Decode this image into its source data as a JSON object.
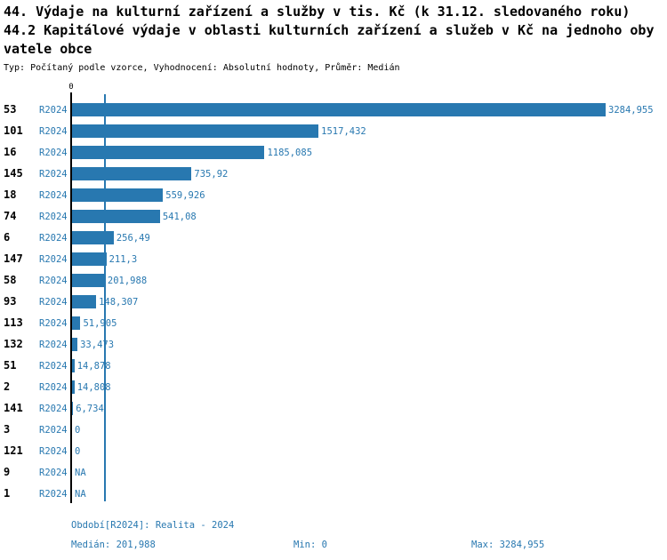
{
  "title": {
    "line1": "44. Výdaje na kulturní zařízení a služby v tis. Kč (k 31.12. sledovaného roku)",
    "line2": "44.2 Kapitálové výdaje v oblasti kulturních zařízení a služeb v Kč na jednoho oby",
    "line3": "vatele obce",
    "subtitle": "Typ: Počítaný podle vzorce, Vyhodnocení: Absolutní hodnoty, Průměr: Medián"
  },
  "axis": {
    "zero_label": "0"
  },
  "colors": {
    "bar": "#2878b0",
    "axis": "#000000",
    "median_line": "#2878b0",
    "text": "#000000",
    "accent_text": "#2878b0"
  },
  "chart_data": {
    "type": "bar",
    "orientation": "horizontal",
    "title": "44. Výdaje na kulturní zařízení a služby v tis. Kč (k 31.12. sledovaného roku) — 44.2 Kapitálové výdaje v oblasti kulturních zařízení a služeb v Kč na jednoho obyvatele obce",
    "period_label": "R2024",
    "categories": [
      "53",
      "101",
      "16",
      "145",
      "18",
      "74",
      "6",
      "147",
      "58",
      "93",
      "113",
      "132",
      "51",
      "2",
      "141",
      "3",
      "121",
      "9",
      "1"
    ],
    "values": [
      3284.955,
      1517.432,
      1185.085,
      735.92,
      559.926,
      541.08,
      256.49,
      211.3,
      201.988,
      148.307,
      51.905,
      33.473,
      14.878,
      14.808,
      6.734,
      0,
      0,
      null,
      null
    ],
    "value_labels": [
      "3284,955",
      "1517,432",
      "1185,085",
      "735,92",
      "559,926",
      "541,08",
      "256,49",
      "211,3",
      "201,988",
      "148,307",
      "51,905",
      "33,473",
      "14,878",
      "14,808",
      "6,734",
      "0",
      "0",
      "NA",
      "NA"
    ],
    "x_tick_labels": [
      "0"
    ],
    "xlim": [
      0,
      3600
    ],
    "median_value": 201.988,
    "min_value": 0,
    "max_value": 3284.955,
    "legend_position": "none",
    "grid": false
  },
  "footer": {
    "period": "Období[R2024]: Realita - 2024",
    "median": "Medián: 201,988",
    "min": "Min: 0",
    "max": "Max: 3284,955"
  }
}
